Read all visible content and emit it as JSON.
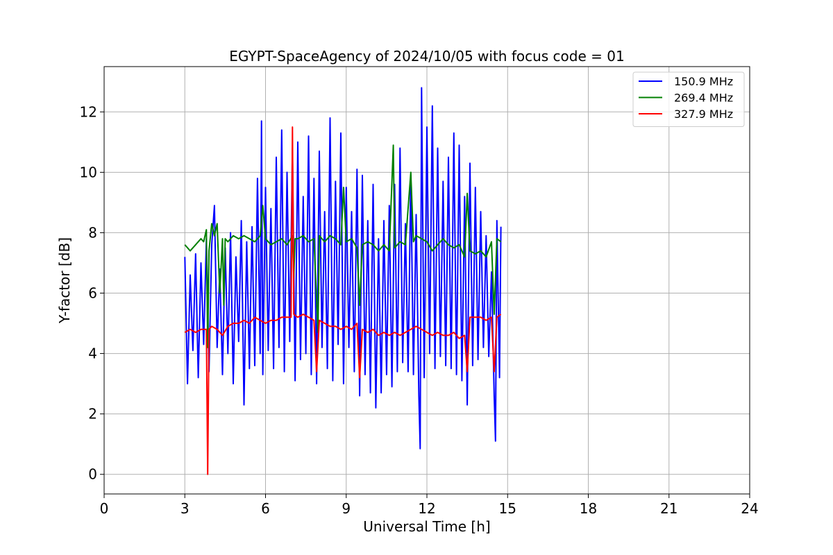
{
  "chart_data": {
    "type": "line",
    "title": "EGYPT-SpaceAgency of 2024/10/05 with focus code = 01",
    "xlabel": "Universal Time [h]",
    "ylabel": "Y-factor [dB]",
    "xlim": [
      0,
      24
    ],
    "ylim": [
      -0.65,
      13.5
    ],
    "xticks": [
      0,
      3,
      6,
      9,
      12,
      15,
      18,
      21,
      24
    ],
    "yticks": [
      0,
      2,
      4,
      6,
      8,
      10,
      12
    ],
    "grid": true,
    "legend_position": "top-right",
    "series": [
      {
        "name": "150.9 MHz",
        "color": "#0000ff",
        "x": [
          3.0,
          3.1,
          3.2,
          3.3,
          3.4,
          3.5,
          3.6,
          3.7,
          3.8,
          3.9,
          4.0,
          4.1,
          4.2,
          4.3,
          4.4,
          4.5,
          4.6,
          4.7,
          4.8,
          4.9,
          5.0,
          5.1,
          5.2,
          5.3,
          5.4,
          5.5,
          5.6,
          5.7,
          5.8,
          5.85,
          5.9,
          6.0,
          6.1,
          6.2,
          6.3,
          6.4,
          6.5,
          6.6,
          6.7,
          6.8,
          6.9,
          7.0,
          7.1,
          7.2,
          7.3,
          7.4,
          7.5,
          7.6,
          7.7,
          7.8,
          7.9,
          8.0,
          8.1,
          8.2,
          8.3,
          8.4,
          8.5,
          8.6,
          8.7,
          8.8,
          8.9,
          9.0,
          9.1,
          9.2,
          9.3,
          9.4,
          9.5,
          9.6,
          9.7,
          9.8,
          9.9,
          10.0,
          10.1,
          10.2,
          10.3,
          10.4,
          10.5,
          10.6,
          10.7,
          10.8,
          10.9,
          11.0,
          11.1,
          11.2,
          11.3,
          11.4,
          11.5,
          11.6,
          11.7,
          11.75,
          11.8,
          11.9,
          12.0,
          12.1,
          12.2,
          12.3,
          12.4,
          12.5,
          12.6,
          12.7,
          12.8,
          12.9,
          13.0,
          13.1,
          13.2,
          13.3,
          13.4,
          13.5,
          13.6,
          13.7,
          13.8,
          13.9,
          14.0,
          14.1,
          14.2,
          14.3,
          14.4,
          14.5,
          14.55,
          14.6,
          14.7,
          14.75
        ],
        "y": [
          7.2,
          3.0,
          6.6,
          4.1,
          7.3,
          3.2,
          7.0,
          4.3,
          7.8,
          3.4,
          7.6,
          8.9,
          4.2,
          6.8,
          3.3,
          7.5,
          4.0,
          8.0,
          3.0,
          7.2,
          4.4,
          8.4,
          2.3,
          7.7,
          3.5,
          8.2,
          3.6,
          9.8,
          4.0,
          11.7,
          3.3,
          9.5,
          4.1,
          8.8,
          3.5,
          10.5,
          4.2,
          11.4,
          3.4,
          10.0,
          4.4,
          10.8,
          3.1,
          11.0,
          3.8,
          9.2,
          4.0,
          11.2,
          3.3,
          9.8,
          3.0,
          10.7,
          4.2,
          8.7,
          3.5,
          11.8,
          3.1,
          9.7,
          4.3,
          11.3,
          3.0,
          9.5,
          4.2,
          8.7,
          3.4,
          10.1,
          2.6,
          9.9,
          3.3,
          8.4,
          2.7,
          9.6,
          2.2,
          7.8,
          2.7,
          8.4,
          3.3,
          8.9,
          2.9,
          9.6,
          3.4,
          10.8,
          3.7,
          8.3,
          3.4,
          9.9,
          3.3,
          8.6,
          2.6,
          0.85,
          12.8,
          3.2,
          11.5,
          4.0,
          12.2,
          3.5,
          10.8,
          3.9,
          9.7,
          3.6,
          10.5,
          3.5,
          11.3,
          3.3,
          10.9,
          3.1,
          9.2,
          2.3,
          10.3,
          3.6,
          9.5,
          3.8,
          8.7,
          4.2,
          7.9,
          3.9,
          6.7,
          2.6,
          1.1,
          8.4,
          3.2,
          8.2
        ]
      },
      {
        "name": "269.4 MHz",
        "color": "#008000",
        "x": [
          3.0,
          3.2,
          3.4,
          3.6,
          3.7,
          3.8,
          3.85,
          3.9,
          4.0,
          4.1,
          4.2,
          4.3,
          4.4,
          4.45,
          4.5,
          4.6,
          4.8,
          5.0,
          5.2,
          5.4,
          5.6,
          5.8,
          5.9,
          6.0,
          6.2,
          6.4,
          6.6,
          6.8,
          7.0,
          7.05,
          7.1,
          7.2,
          7.4,
          7.6,
          7.8,
          7.95,
          8.0,
          8.2,
          8.4,
          8.6,
          8.8,
          8.9,
          9.0,
          9.2,
          9.4,
          9.5,
          9.6,
          9.8,
          10.0,
          10.2,
          10.4,
          10.6,
          10.75,
          10.8,
          11.0,
          11.2,
          11.4,
          11.5,
          11.6,
          11.8,
          12.0,
          12.2,
          12.4,
          12.6,
          12.8,
          13.0,
          13.2,
          13.4,
          13.5,
          13.6,
          13.8,
          14.0,
          14.2,
          14.4,
          14.5,
          14.6,
          14.75
        ],
        "y": [
          7.6,
          7.4,
          7.6,
          7.8,
          7.7,
          8.1,
          4.2,
          7.4,
          8.3,
          7.9,
          8.3,
          6.0,
          7.8,
          5.6,
          7.8,
          7.7,
          7.9,
          7.8,
          7.9,
          7.8,
          7.7,
          7.9,
          8.9,
          7.8,
          7.6,
          7.7,
          7.8,
          7.6,
          7.9,
          6.5,
          7.8,
          7.8,
          7.9,
          7.7,
          7.8,
          4.7,
          7.9,
          7.7,
          7.9,
          7.8,
          7.6,
          9.5,
          7.7,
          7.8,
          7.5,
          5.6,
          7.6,
          7.7,
          7.6,
          7.4,
          7.6,
          7.4,
          10.9,
          7.5,
          7.7,
          7.6,
          10.0,
          7.7,
          7.9,
          7.8,
          7.7,
          7.4,
          7.6,
          7.8,
          7.6,
          7.5,
          7.6,
          7.2,
          9.3,
          7.4,
          7.3,
          7.4,
          7.2,
          7.7,
          5.3,
          7.8,
          7.7
        ]
      },
      {
        "name": "327.9 MHz",
        "color": "#ff0000",
        "x": [
          3.0,
          3.2,
          3.4,
          3.6,
          3.8,
          3.85,
          3.9,
          4.0,
          4.2,
          4.4,
          4.6,
          4.8,
          5.0,
          5.2,
          5.4,
          5.6,
          5.8,
          6.0,
          6.2,
          6.4,
          6.6,
          6.8,
          6.95,
          7.0,
          7.05,
          7.2,
          7.4,
          7.6,
          7.8,
          7.9,
          8.0,
          8.2,
          8.4,
          8.6,
          8.8,
          9.0,
          9.2,
          9.4,
          9.5,
          9.6,
          9.8,
          10.0,
          10.2,
          10.4,
          10.6,
          10.8,
          11.0,
          11.2,
          11.4,
          11.6,
          11.8,
          12.0,
          12.2,
          12.4,
          12.6,
          12.8,
          13.0,
          13.2,
          13.4,
          13.5,
          13.6,
          13.8,
          14.0,
          14.2,
          14.4,
          14.5,
          14.6,
          14.75
        ],
        "y": [
          4.7,
          4.8,
          4.7,
          4.8,
          4.8,
          0.0,
          4.8,
          4.9,
          4.8,
          4.6,
          4.9,
          5.0,
          5.0,
          5.1,
          5.0,
          5.2,
          5.1,
          5.0,
          5.1,
          5.1,
          5.2,
          5.2,
          5.2,
          11.5,
          5.3,
          5.2,
          5.3,
          5.2,
          5.1,
          3.4,
          5.1,
          5.0,
          4.9,
          4.9,
          4.8,
          4.9,
          4.8,
          5.0,
          3.2,
          4.8,
          4.7,
          4.8,
          4.6,
          4.7,
          4.6,
          4.7,
          4.6,
          4.7,
          4.8,
          4.9,
          4.8,
          4.7,
          4.6,
          4.7,
          4.6,
          4.6,
          4.7,
          4.5,
          4.6,
          3.4,
          5.2,
          5.2,
          5.2,
          5.1,
          5.2,
          3.4,
          5.2,
          5.3
        ]
      }
    ]
  }
}
